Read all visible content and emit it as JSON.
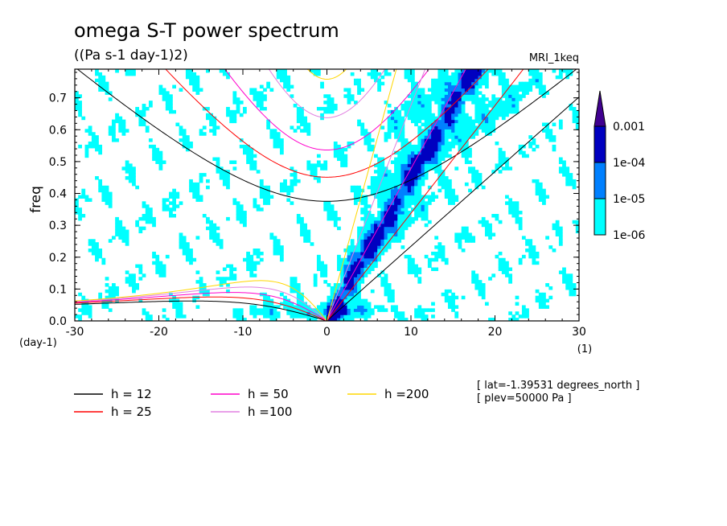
{
  "chart_data": {
    "type": "heatmap",
    "title": "omega S-T power spectrum",
    "subtitle": "((Pa s-1 day-1)2)",
    "model": "MRI_1keq",
    "xlabel": "wvn",
    "xunit": "(1)",
    "ylabel": "freq",
    "yunit": "(day-1)",
    "xlim": [
      -30,
      30
    ],
    "ylim": [
      0,
      0.79
    ],
    "xticks": [
      -30,
      -20,
      -10,
      0,
      10,
      20,
      30
    ],
    "xtick_labels": [
      "-30",
      "-20",
      "-10",
      "0",
      "10",
      "20",
      "30"
    ],
    "yticks": [
      0,
      0.1,
      0.2,
      0.3,
      0.4,
      0.5,
      0.6,
      0.7
    ],
    "ytick_labels": [
      "0.0",
      "0.1",
      "0.2",
      "0.3",
      "0.4",
      "0.5",
      "0.6",
      "0.7"
    ],
    "colorbar": {
      "levels": [
        1e-06,
        1e-05,
        0.0001,
        0.001
      ],
      "labels": [
        "1e-06",
        "1e-05",
        "1e-04",
        "0.001"
      ],
      "colors": [
        "#00ffff",
        "#0080ff",
        "#0000c0",
        "#400090"
      ]
    },
    "dispersion_curves": [
      {
        "label": "h = 12",
        "h": 12,
        "color": "#000000"
      },
      {
        "label": "h = 25",
        "h": 25,
        "color": "#ff0000"
      },
      {
        "label": "h = 50",
        "h": 50,
        "color": "#ff00cc"
      },
      {
        "label": "h =100",
        "h": 100,
        "color": "#e080e0"
      },
      {
        "label": "h =200",
        "h": 200,
        "color": "#ffd700"
      }
    ],
    "annotations": [
      "[ lat=-1.39531 degrees_north ]",
      "[ plev=50000 Pa ]"
    ]
  }
}
